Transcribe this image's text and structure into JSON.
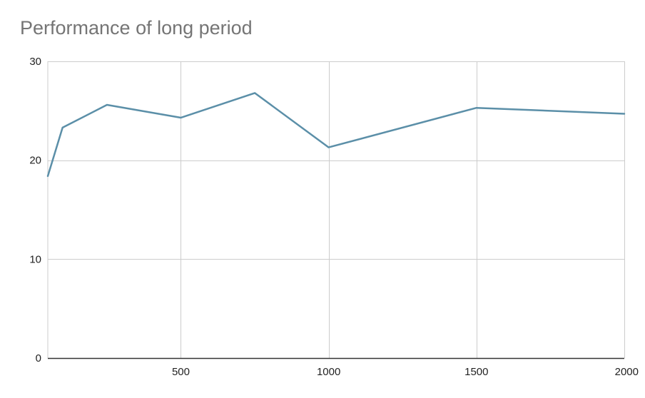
{
  "chart_data": {
    "type": "line",
    "title": "Performance of long period",
    "xlabel": "",
    "ylabel": "",
    "xlim": [
      50,
      2000
    ],
    "ylim": [
      0,
      30
    ],
    "x_ticks": [
      500,
      1000,
      1500,
      2000
    ],
    "y_ticks": [
      0,
      10,
      20,
      30
    ],
    "grid": true,
    "legend": "none",
    "series": [
      {
        "color": "#5b8fa8",
        "points": [
          {
            "x": 50,
            "y": 18.4
          },
          {
            "x": 100,
            "y": 23.3
          },
          {
            "x": 250,
            "y": 25.6
          },
          {
            "x": 500,
            "y": 24.3
          },
          {
            "x": 750,
            "y": 26.8
          },
          {
            "x": 1000,
            "y": 21.3
          },
          {
            "x": 1500,
            "y": 25.3
          },
          {
            "x": 2000,
            "y": 24.7
          }
        ]
      }
    ],
    "colors": {
      "line": "#5b8fa8",
      "grid": "#cccccc",
      "axis": "#333333"
    }
  }
}
